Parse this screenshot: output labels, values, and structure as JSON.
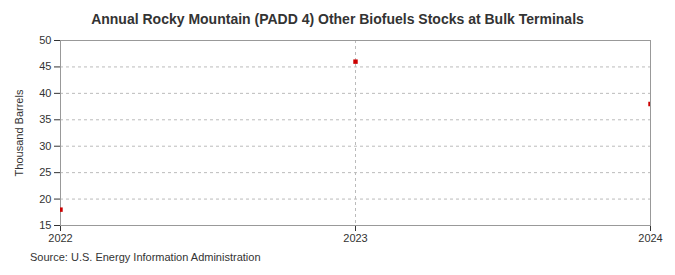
{
  "chart_data": {
    "type": "scatter",
    "title": "Annual Rocky Mountain (PADD 4) Other Biofuels Stocks at Bulk Terminals",
    "x": [
      2022,
      2023,
      2024
    ],
    "values": [
      18,
      46,
      38
    ],
    "y_label": "Thousand Barrels",
    "source": "Source: U.S. Energy Information Administration",
    "color": "#cc0000",
    "marker": "square",
    "grid": true,
    "xlim": [
      2022,
      2024
    ],
    "xticks": [
      2022,
      2023,
      2024
    ],
    "ylim": [
      15,
      50
    ],
    "yticks": [
      15,
      20,
      25,
      30,
      35,
      40,
      45,
      50
    ]
  }
}
